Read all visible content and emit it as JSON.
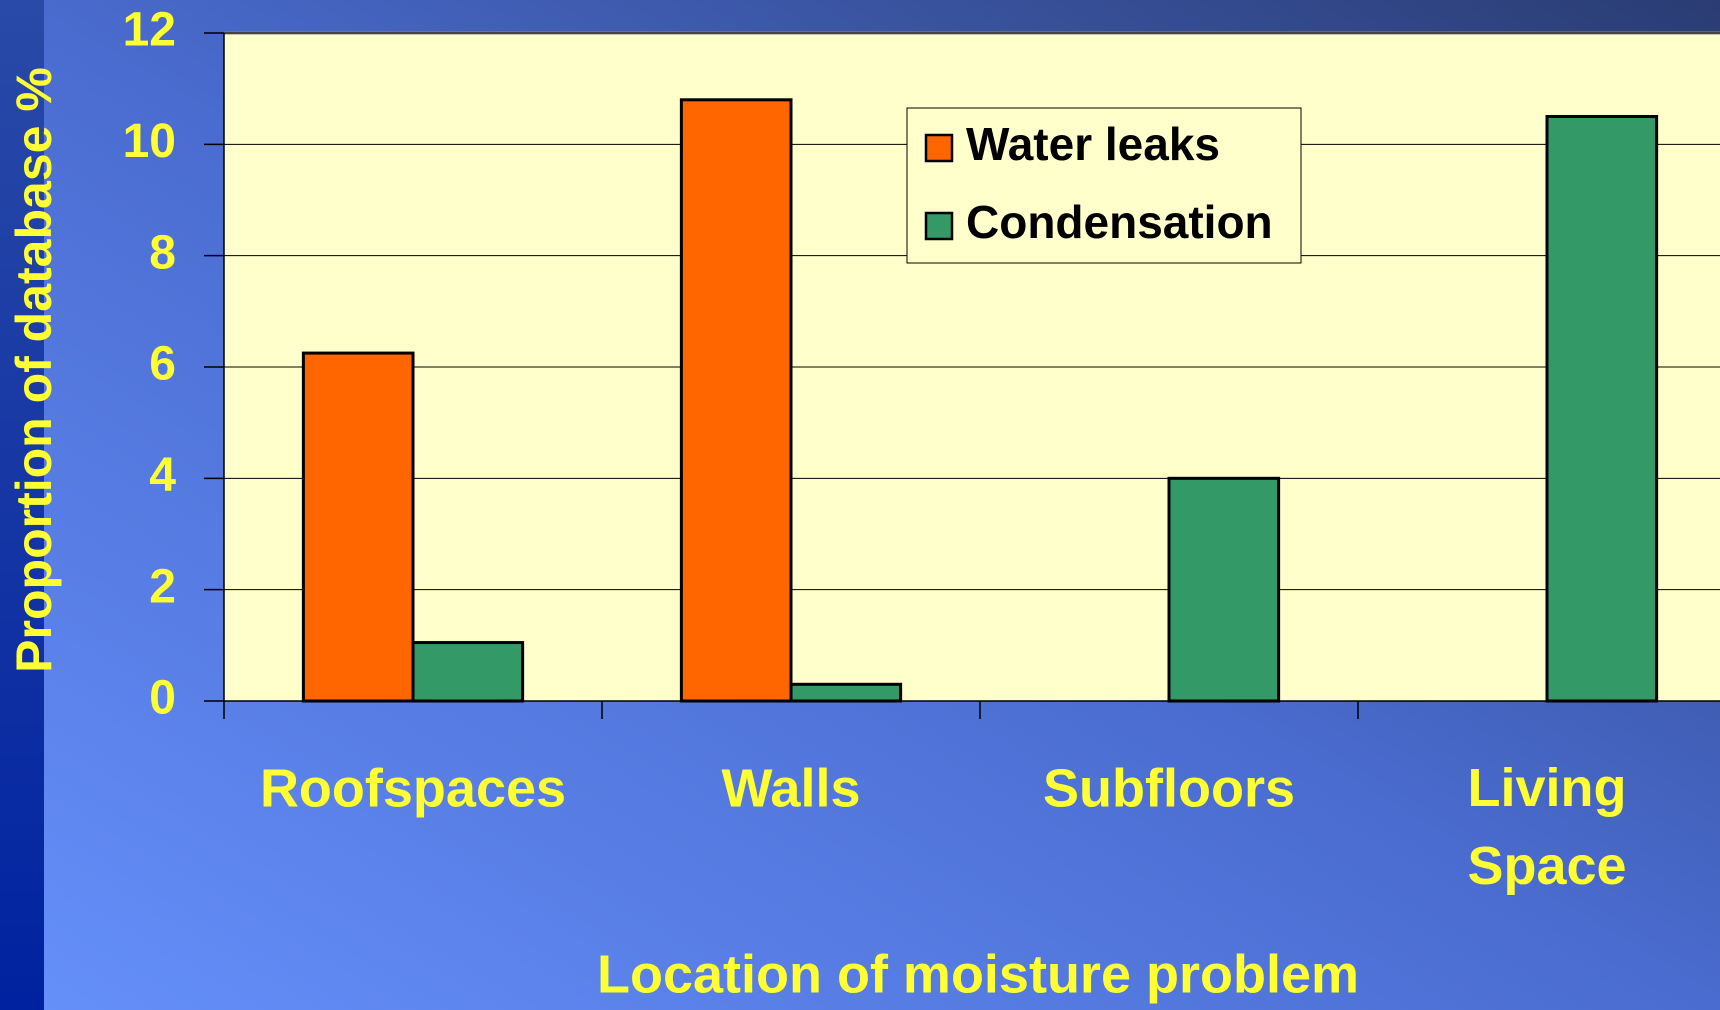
{
  "chart_data": {
    "type": "bar",
    "xlabel": "Location of moisture problem",
    "ylabel": "Proportion of database %",
    "categories": [
      "Roofspaces",
      "Walls",
      "Subfloors",
      "Living Space"
    ],
    "series": [
      {
        "name": "Water leaks",
        "color": "#ff6600",
        "values": [
          6.25,
          10.8,
          0,
          0
        ]
      },
      {
        "name": "Condensation",
        "color": "#339966",
        "values": [
          1.05,
          0.3,
          4.0,
          10.5
        ]
      }
    ],
    "ylim": [
      0,
      12
    ],
    "yticks": [
      0,
      2,
      4,
      6,
      8,
      10,
      12
    ],
    "grid": true,
    "legend": "top"
  }
}
